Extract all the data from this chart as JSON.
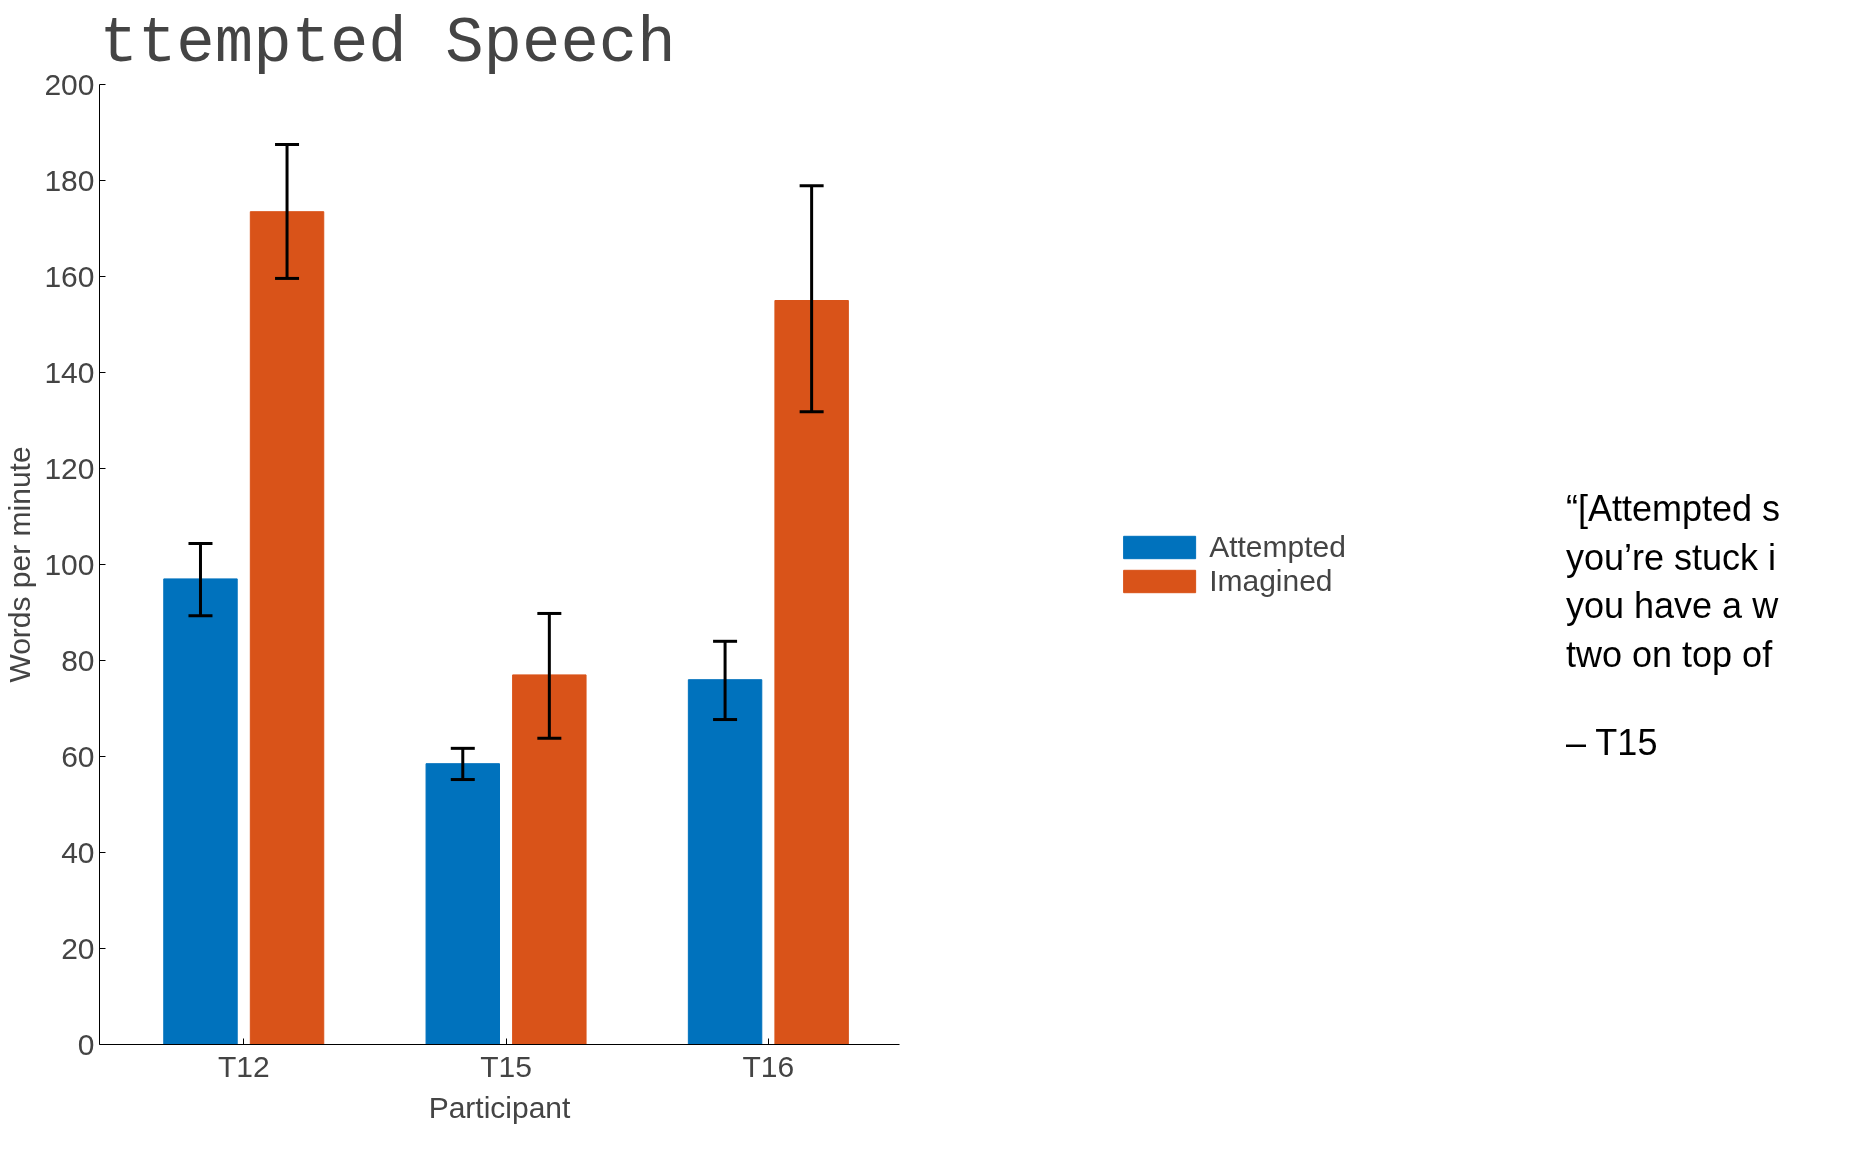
{
  "chart_data": {
    "type": "bar",
    "title": "ttempted Speech",
    "xlabel": "Participant",
    "ylabel": "Words per minute",
    "categories": [
      "T12",
      "T15",
      "T16"
    ],
    "series": [
      {
        "name": "Attempted",
        "color": "#0072bd",
        "values": [
          97,
          58.5,
          76
        ],
        "errors": [
          [
            89.3,
            104.4
          ],
          [
            55.2,
            61.7
          ],
          [
            67.7,
            84
          ]
        ]
      },
      {
        "name": "Imagined",
        "color": "#d95319",
        "values": [
          173.5,
          77,
          155
        ],
        "errors": [
          [
            159.6,
            187.5
          ],
          [
            63.8,
            89.8
          ],
          [
            131.8,
            178.9
          ]
        ]
      }
    ],
    "ylim": [
      0,
      200
    ],
    "yticks": [
      0,
      20,
      40,
      60,
      80,
      100,
      120,
      140,
      160,
      180,
      200
    ],
    "legend": "right",
    "grid": false,
    "annotations": [
      "“[Attempted s\nyou’re stuck i\nyou have a w\ntwo on top of",
      "– T15"
    ]
  }
}
